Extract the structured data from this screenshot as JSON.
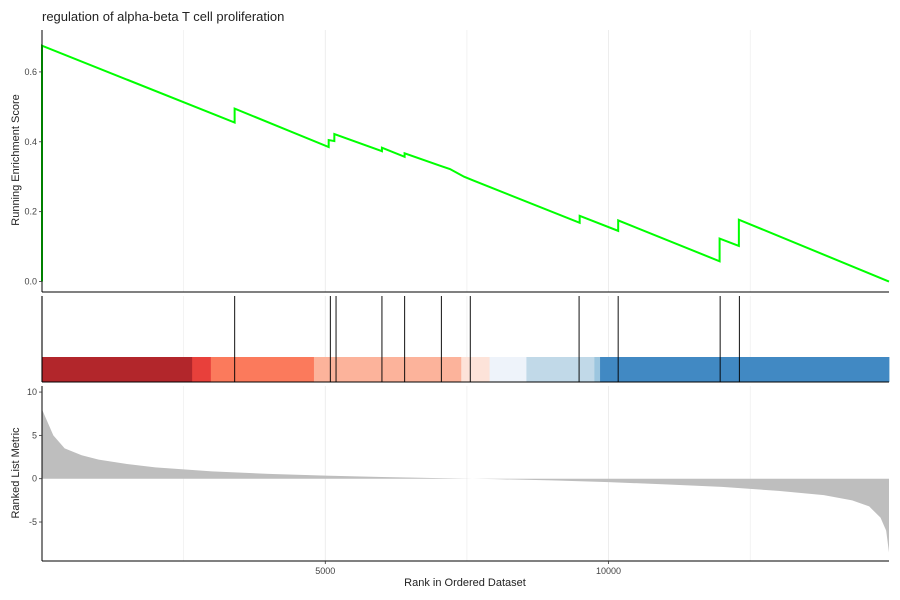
{
  "chart_data": {
    "type": "line",
    "title": "regulation of alpha-beta T cell proliferation",
    "xlabel": "Rank in Ordered Dataset",
    "x_ticks": [
      5000,
      10000
    ],
    "xlim": [
      0,
      14950
    ],
    "grid": true,
    "colors": {
      "es_line": "#00ff00",
      "hit_line": "#000000",
      "metric_fill": "#bebebe",
      "axis": "#000000",
      "grid": "#ebebeb"
    },
    "panels": [
      {
        "name": "running-enrichment",
        "ylabel": "Running Enrichment Score",
        "ylim": [
          -0.03,
          0.72
        ],
        "y_ticks": [
          0.0,
          0.2,
          0.4,
          0.6
        ],
        "y_tick_labels": [
          "0.0",
          "0.2",
          "0.4",
          "0.6"
        ],
        "series": [
          {
            "x": [
              0,
              0,
              3400,
              3400,
              5060,
              5060,
              5160,
              5160,
              6000,
              6000,
              6400,
              6400,
              7050,
              7200,
              7450,
              7600,
              9490,
              9490,
              10170,
              10170,
              11960,
              11960,
              12300,
              12300,
              14950
            ],
            "y": [
              0.0,
              0.675,
              0.455,
              0.495,
              0.385,
              0.405,
              0.402,
              0.422,
              0.373,
              0.383,
              0.357,
              0.367,
              0.33,
              0.322,
              0.3,
              0.29,
              0.168,
              0.188,
              0.145,
              0.175,
              0.058,
              0.123,
              0.102,
              0.177,
              0.0
            ]
          }
        ]
      },
      {
        "name": "gene-hits",
        "hits": [
          0,
          3400,
          5090,
          5190,
          6000,
          6400,
          7050,
          7560,
          9480,
          10170,
          11970,
          12310
        ],
        "color_bands": [
          {
            "start": 0,
            "end": 2650,
            "color": "#b2262b"
          },
          {
            "start": 2650,
            "end": 2980,
            "color": "#e8403b"
          },
          {
            "start": 2980,
            "end": 4800,
            "color": "#fb7a5c"
          },
          {
            "start": 4800,
            "end": 7400,
            "color": "#fcb39b"
          },
          {
            "start": 7400,
            "end": 7900,
            "color": "#fde3d9"
          },
          {
            "start": 7900,
            "end": 8550,
            "color": "#eef3fa"
          },
          {
            "start": 8550,
            "end": 9750,
            "color": "#c1d9e8"
          },
          {
            "start": 9750,
            "end": 9850,
            "color": "#9cc6df"
          },
          {
            "start": 9850,
            "end": 14950,
            "color": "#4189c3"
          }
        ]
      },
      {
        "name": "ranked-metric",
        "ylabel": "Ranked List Metric",
        "ylim": [
          -9.5,
          10.7
        ],
        "y_ticks": [
          -5,
          0,
          5,
          10
        ],
        "y_tick_labels": [
          "-5",
          "0",
          "5",
          "10"
        ],
        "series": [
          {
            "type": "area",
            "x": [
              0,
              100,
              200,
              400,
              700,
              1000,
              1500,
              2000,
              3000,
              4000,
              5000,
              6000,
              7000,
              7600,
              8000,
              9000,
              10000,
              11000,
              12000,
              13000,
              13800,
              14300,
              14600,
              14800,
              14900,
              14950
            ],
            "y": [
              8.0,
              6.5,
              5.0,
              3.5,
              2.7,
              2.2,
              1.7,
              1.3,
              0.85,
              0.55,
              0.35,
              0.2,
              0.07,
              0.0,
              -0.05,
              -0.2,
              -0.4,
              -0.65,
              -0.95,
              -1.4,
              -1.9,
              -2.5,
              -3.2,
              -4.5,
              -6.0,
              -8.5
            ]
          }
        ]
      }
    ]
  }
}
